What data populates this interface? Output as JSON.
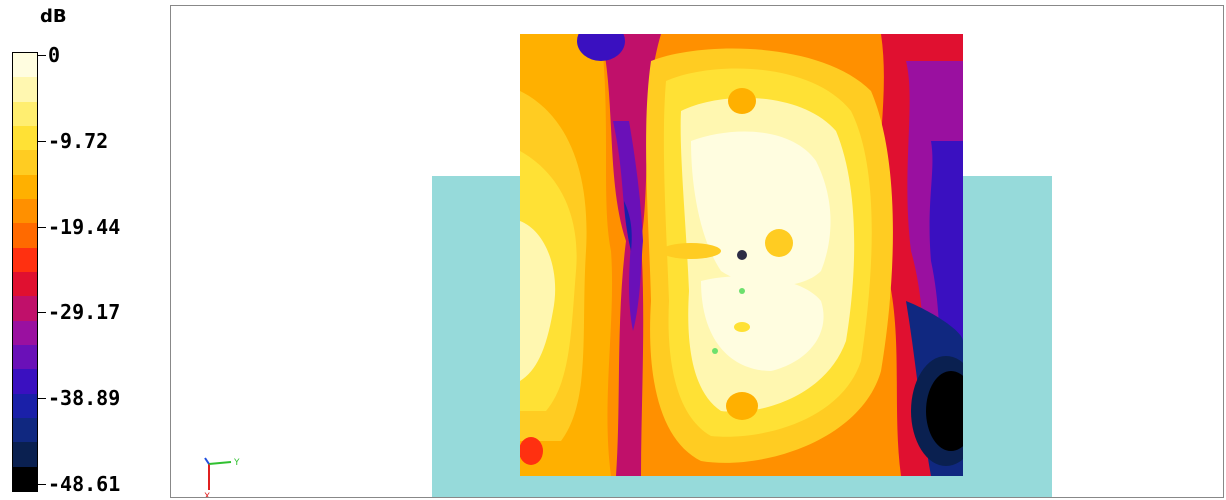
{
  "legend": {
    "unit": "dB",
    "ticks": [
      "0",
      "-9.72",
      "-19.44",
      "-29.17",
      "-38.89",
      "-48.61"
    ],
    "colors": [
      "#fffde0",
      "#fff7b0",
      "#ffee70",
      "#ffe135",
      "#ffcc22",
      "#ffb000",
      "#ff9000",
      "#ff6a00",
      "#ff3010",
      "#e01030",
      "#c0106a",
      "#9a10a0",
      "#6a10b8",
      "#3a10c0",
      "#1a20a8",
      "#102880",
      "#0a2050",
      "#000000"
    ]
  },
  "scene": {
    "background_color": "#ffffff",
    "ground_color": "#96dada",
    "source_color": "#2d2d45",
    "receiver_color": "#6de06d"
  },
  "axis": {
    "y_label": "Y",
    "x_label": "X"
  }
}
